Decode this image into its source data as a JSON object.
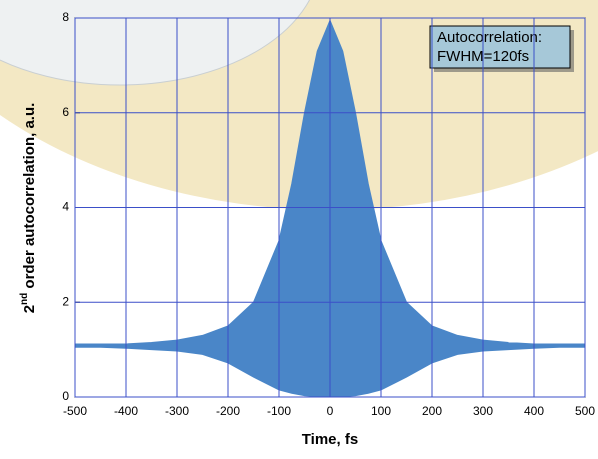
{
  "chart_data": {
    "type": "band",
    "xlabel": "Time, fs",
    "ylabel": {
      "base": "2",
      "sup": "nd",
      "rest": " order autocorrelation, a.u."
    },
    "annotations": [
      "Autocorrelation:",
      "FWHM=120fs"
    ],
    "x": [
      -500,
      -450,
      -400,
      -350,
      -300,
      -250,
      -200,
      -150,
      -100,
      -75,
      -50,
      -25,
      0,
      25,
      50,
      75,
      100,
      150,
      200,
      250,
      300,
      350,
      400,
      450,
      500
    ],
    "upper": [
      1.12,
      1.12,
      1.12,
      1.15,
      1.2,
      1.3,
      1.5,
      2.0,
      3.3,
      4.5,
      6.0,
      7.3,
      7.95,
      7.3,
      6.0,
      4.5,
      3.3,
      2.0,
      1.5,
      1.3,
      1.2,
      1.15,
      1.12,
      1.12,
      1.12
    ],
    "lower": [
      1.05,
      1.05,
      1.03,
      1.0,
      0.97,
      0.9,
      0.72,
      0.42,
      0.15,
      0.08,
      0.03,
      0.01,
      0.0,
      0.01,
      0.03,
      0.08,
      0.15,
      0.42,
      0.72,
      0.9,
      0.97,
      1.0,
      1.03,
      1.05,
      1.05
    ],
    "color": "#4a86c8",
    "xlim": [
      -500,
      500
    ],
    "ylim": [
      0,
      8
    ],
    "xticks": [
      -500,
      -400,
      -300,
      -200,
      -100,
      0,
      100,
      200,
      300,
      400,
      500
    ],
    "yticks": [
      0,
      2,
      4,
      6,
      8
    ],
    "grid": true,
    "grid_color": "#3b4fc8"
  }
}
